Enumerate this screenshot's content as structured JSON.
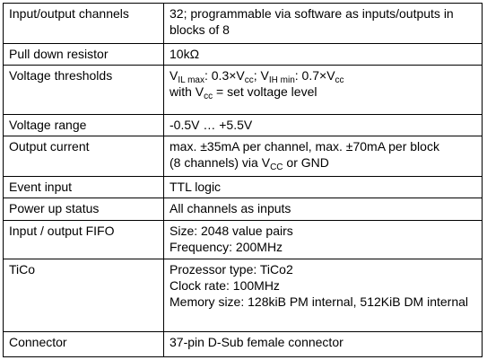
{
  "table": {
    "rows": [
      {
        "label": "Input/output channels",
        "lines": [
          "32; programmable via software as inputs/outputs in",
          "blocks of 8"
        ]
      },
      {
        "label": "Pull down resistor",
        "lines": [
          "10kΩ"
        ]
      },
      {
        "label": "Voltage thresholds",
        "lines": [
          [
            {
              "text": "V"
            },
            {
              "text": "IL max",
              "sub": true
            },
            {
              "text": ": 0.3×V"
            },
            {
              "text": "cc",
              "sub": true
            },
            {
              "text": "; V"
            },
            {
              "text": "IH min",
              "sub": true
            },
            {
              "text": ": 0.7×V"
            },
            {
              "text": "cc",
              "sub": true
            }
          ],
          [
            {
              "text": "with V"
            },
            {
              "text": "cc",
              "sub": true
            },
            {
              "text": " = set voltage level"
            }
          ]
        ]
      },
      {
        "label": "Voltage range",
        "lines": [
          "-0.5V … +5.5V"
        ]
      },
      {
        "label": "Output current",
        "lines": [
          "max. ±35mA per channel, max. ±70mA per block",
          [
            {
              "text": "(8 channels) via V"
            },
            {
              "text": "CC",
              "sub": true
            },
            {
              "text": " or GND"
            }
          ]
        ]
      },
      {
        "label": "Event input",
        "lines": [
          "TTL logic"
        ]
      },
      {
        "label": "Power up status",
        "lines": [
          "All channels as inputs"
        ]
      },
      {
        "label": "Input / output FIFO",
        "lines": [
          "Size: 2048 value pairs",
          "Frequency: 200MHz"
        ]
      },
      {
        "label": "TiCo",
        "lines": [
          "Prozessor type: TiCo2",
          "Clock rate: 100MHz",
          "Memory size: 128kiB PM internal, 512KiB DM internal"
        ]
      },
      {
        "label": "Connector",
        "lines": [
          "37-pin D-Sub female connector"
        ]
      }
    ]
  }
}
